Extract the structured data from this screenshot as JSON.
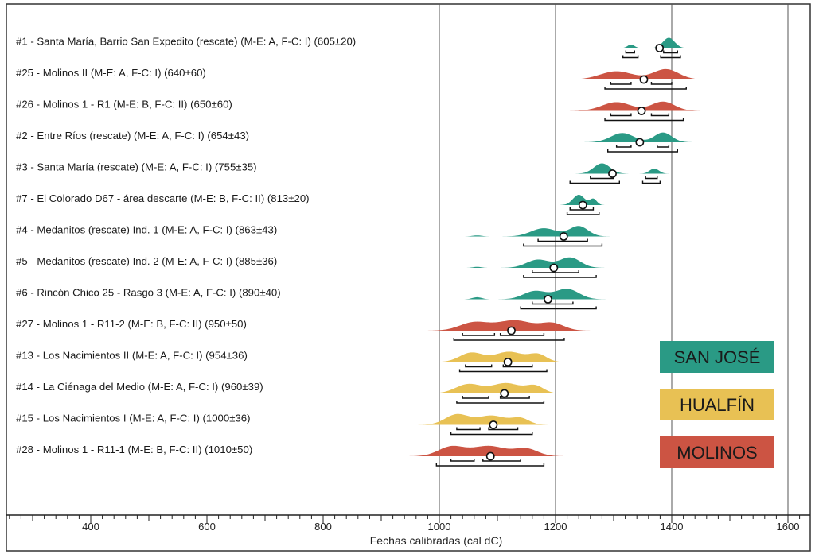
{
  "chart_data": {
    "type": "area",
    "xlabel": "Fechas calibradas (cal dC)",
    "xlim": [
      260,
      1640
    ],
    "x_ticks": [
      400,
      600,
      800,
      1000,
      1200,
      1400,
      1600
    ],
    "gridlines_x": [
      1000,
      1200,
      1400,
      1600
    ],
    "legend_position": "bottom-right",
    "legend": [
      {
        "name": "SAN JOSÉ",
        "color": "#2a9a85"
      },
      {
        "name": "HUALFÍN",
        "color": "#e8c154"
      },
      {
        "name": "MOLINOS",
        "color": "#cc5443"
      }
    ],
    "samples": [
      {
        "label": "#1 - Santa María, Barrio San Expedito (rescate) (M-E: A, F-C: I) (605±20)",
        "group": "SAN JOSÉ",
        "median": 1379,
        "peaks": [
          [
            1330,
            6,
            0.35
          ],
          [
            1395,
            10,
            1.0
          ]
        ],
        "range_68": [
          [
            1321,
            1336
          ],
          [
            1386,
            1410
          ]
        ],
        "range_95": [
          [
            1316,
            1342
          ],
          [
            1381,
            1415
          ]
        ]
      },
      {
        "label": "#25 - Molinos II (M-E: A, F-C: I) (640±60)",
        "group": "MOLINOS",
        "median": 1352,
        "peaks": [
          [
            1305,
            28,
            0.8
          ],
          [
            1390,
            22,
            1.0
          ]
        ],
        "range_68": [
          [
            1295,
            1330
          ],
          [
            1365,
            1400
          ]
        ],
        "range_95": [
          [
            1285,
            1425
          ]
        ]
      },
      {
        "label": "#26 - Molinos 1 - R1 (M-E: B, F-C: II) (650±60)",
        "group": "MOLINOS",
        "median": 1348,
        "peaks": [
          [
            1305,
            25,
            0.85
          ],
          [
            1385,
            20,
            0.9
          ]
        ],
        "range_68": [
          [
            1295,
            1330
          ],
          [
            1365,
            1395
          ]
        ],
        "range_95": [
          [
            1285,
            1420
          ]
        ]
      },
      {
        "label": "#2 - Entre Ríos (rescate) (M-E: A, F-C: I) (654±43)",
        "group": "SAN JOSÉ",
        "median": 1345,
        "peaks": [
          [
            1315,
            20,
            0.9
          ],
          [
            1385,
            15,
            0.95
          ]
        ],
        "range_68": [
          [
            1305,
            1330
          ],
          [
            1375,
            1395
          ]
        ],
        "range_95": [
          [
            1290,
            1410
          ]
        ]
      },
      {
        "label": "#3 - Santa María (rescate) (M-E: A, F-C: I) (755±35)",
        "group": "SAN JOSÉ",
        "median": 1298,
        "peaks": [
          [
            1280,
            14,
            1.0
          ],
          [
            1370,
            8,
            0.5
          ]
        ],
        "range_68": [
          [
            1260,
            1300
          ],
          [
            1355,
            1375
          ]
        ],
        "range_95": [
          [
            1225,
            1310
          ],
          [
            1350,
            1380
          ]
        ]
      },
      {
        "label": "#7 - El Colorado D67 - área descarte (M-E: B, F-C: II) (813±20)",
        "group": "SAN JOSÉ",
        "median": 1247,
        "peaks": [
          [
            1240,
            10,
            1.0
          ],
          [
            1265,
            6,
            0.6
          ]
        ],
        "range_68": [
          [
            1225,
            1265
          ]
        ],
        "range_95": [
          [
            1220,
            1275
          ]
        ]
      },
      {
        "label": "#4 - Medanitos (rescate) Ind. 1 (M-E: A, F-C: I) (863±43)",
        "group": "SAN JOSÉ",
        "median": 1214,
        "peaks": [
          [
            1180,
            22,
            0.8
          ],
          [
            1240,
            16,
            1.0
          ],
          [
            1065,
            8,
            0.1
          ]
        ],
        "range_68": [
          [
            1170,
            1255
          ]
        ],
        "range_95": [
          [
            1145,
            1280
          ]
        ]
      },
      {
        "label": "#5 - Medanitos (rescate) Ind. 2 (M-E: A, F-C: I) (885±36)",
        "group": "SAN JOSÉ",
        "median": 1197,
        "peaks": [
          [
            1170,
            20,
            0.8
          ],
          [
            1225,
            18,
            1.0
          ],
          [
            1065,
            7,
            0.1
          ]
        ],
        "range_68": [
          [
            1160,
            1240
          ]
        ],
        "range_95": [
          [
            1145,
            1270
          ]
        ]
      },
      {
        "label": "#6 - Rincón Chico 25 - Rasgo 3 (M-E: A, F-C: I) (890±40)",
        "group": "SAN JOSÉ",
        "median": 1187,
        "peaks": [
          [
            1165,
            20,
            0.8
          ],
          [
            1220,
            20,
            1.0
          ],
          [
            1065,
            8,
            0.2
          ]
        ],
        "range_68": [
          [
            1160,
            1230
          ]
        ],
        "range_95": [
          [
            1140,
            1270
          ]
        ]
      },
      {
        "label": "#27 - Molinos 1 - R11-2 (M-E: B, F-C: II) (950±50)",
        "group": "MOLINOS",
        "median": 1124,
        "peaks": [
          [
            1060,
            25,
            0.8
          ],
          [
            1130,
            30,
            1.0
          ],
          [
            1195,
            20,
            0.7
          ]
        ],
        "range_68": [
          [
            1040,
            1095
          ],
          [
            1105,
            1180
          ]
        ],
        "range_95": [
          [
            1025,
            1215
          ]
        ]
      },
      {
        "label": "#13 - Los Nacimientos II (M-E: A, F-C: I) (954±36)",
        "group": "HUALFÍN",
        "median": 1118,
        "peaks": [
          [
            1055,
            20,
            0.9
          ],
          [
            1120,
            25,
            1.0
          ],
          [
            1170,
            15,
            0.7
          ]
        ],
        "range_68": [
          [
            1045,
            1090
          ],
          [
            1110,
            1160
          ]
        ],
        "range_95": [
          [
            1035,
            1185
          ]
        ]
      },
      {
        "label": "#14 - La Ciénaga del Medio (M-E: A, F-C: I) (960±39)",
        "group": "HUALFÍN",
        "median": 1112,
        "peaks": [
          [
            1050,
            22,
            0.9
          ],
          [
            1115,
            25,
            1.0
          ],
          [
            1165,
            15,
            0.7
          ]
        ],
        "range_68": [
          [
            1040,
            1085
          ],
          [
            1105,
            1155
          ]
        ],
        "range_95": [
          [
            1030,
            1180
          ]
        ]
      },
      {
        "label": "#15 - Los Nacimientos I (M-E: A, F-C: I) (1000±36)",
        "group": "HUALFÍN",
        "median": 1093,
        "peaks": [
          [
            1030,
            20,
            1.0
          ],
          [
            1090,
            25,
            0.9
          ],
          [
            1140,
            15,
            0.6
          ]
        ],
        "range_68": [
          [
            1030,
            1070
          ],
          [
            1085,
            1135
          ]
        ],
        "range_95": [
          [
            1020,
            1160
          ]
        ]
      },
      {
        "label": "#28 - Molinos 1 - R11-1 (M-E: B, F-C: II) (1010±50)",
        "group": "MOLINOS",
        "median": 1088,
        "peaks": [
          [
            1020,
            22,
            0.9
          ],
          [
            1085,
            30,
            1.0
          ],
          [
            1150,
            20,
            0.7
          ]
        ],
        "range_68": [
          [
            1020,
            1060
          ],
          [
            1075,
            1140
          ]
        ],
        "range_95": [
          [
            995,
            1180
          ]
        ]
      }
    ]
  }
}
